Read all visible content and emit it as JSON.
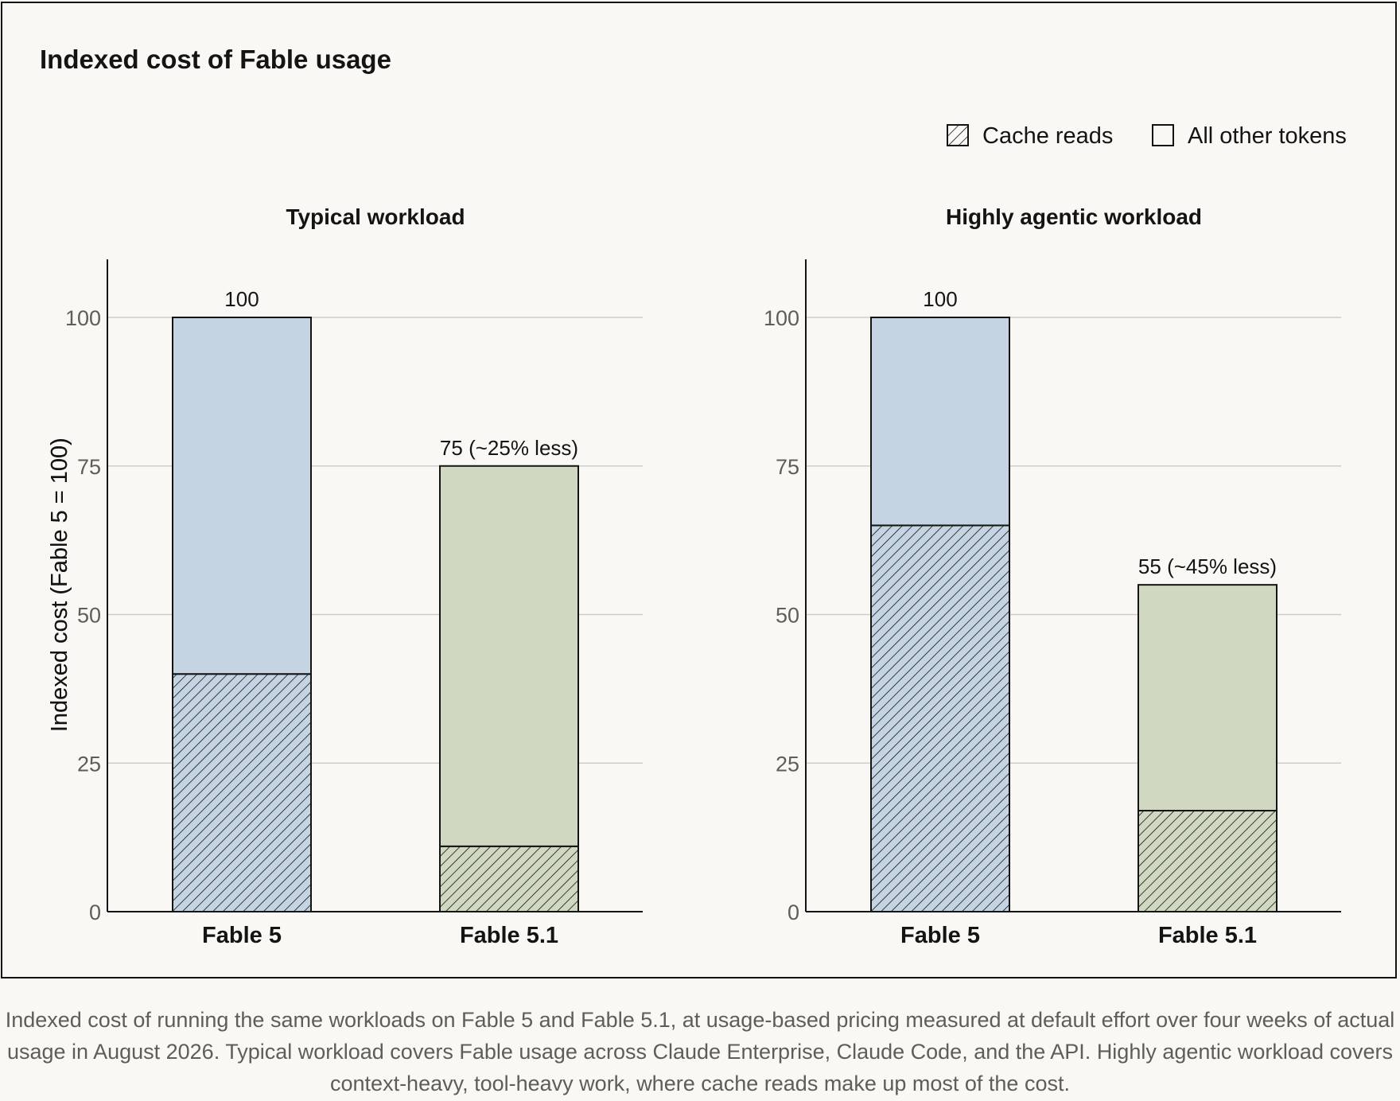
{
  "chart_data": {
    "type": "bar",
    "stacked": true,
    "title": "Indexed cost of Fable usage",
    "legend": {
      "placement": "top-right",
      "entries": [
        {
          "label": "Cache reads",
          "swatch": "hatched"
        },
        {
          "label": "All other tokens",
          "swatch": "plain"
        }
      ]
    },
    "grid": true,
    "panels": [
      {
        "subtitle": "Typical workload",
        "ylabel": "Indexed cost (Fable 5 = 100)",
        "ylim": [
          0,
          110
        ],
        "yticks": [
          0,
          25,
          50,
          75,
          100
        ],
        "categories": [
          "Fable 5",
          "Fable 5.1"
        ],
        "series": [
          {
            "name": "Cache reads",
            "values": [
              40,
              11
            ]
          },
          {
            "name": "All other tokens",
            "values": [
              60,
              64
            ]
          }
        ],
        "totals": [
          100,
          75
        ],
        "data_labels": [
          "100",
          "75 (~25% less)"
        ],
        "colors": [
          "#c5d4e2",
          "#d0d8c1"
        ]
      },
      {
        "subtitle": "Highly agentic workload",
        "ylabel": "Indexed cost (Fable 5 = 100)",
        "ylim": [
          0,
          110
        ],
        "yticks": [
          0,
          25,
          50,
          75,
          100
        ],
        "categories": [
          "Fable 5",
          "Fable 5.1"
        ],
        "series": [
          {
            "name": "Cache reads",
            "values": [
              65,
              17
            ]
          },
          {
            "name": "All other tokens",
            "values": [
              35,
              38
            ]
          }
        ],
        "totals": [
          100,
          55
        ],
        "data_labels": [
          "100",
          "55 (~45% less)"
        ],
        "colors": [
          "#c5d4e2",
          "#d0d8c1"
        ]
      }
    ]
  },
  "caption": "Indexed cost of running the same workloads on Fable 5 and Fable 5.1, at usage-based pricing measured at default effort over four weeks of actual usage in August 2026. Typical workload covers Fable usage across Claude Enterprise, Claude Code, and the API. Highly agentic workload covers context-heavy, tool-heavy work, where cache reads make up most of the cost."
}
